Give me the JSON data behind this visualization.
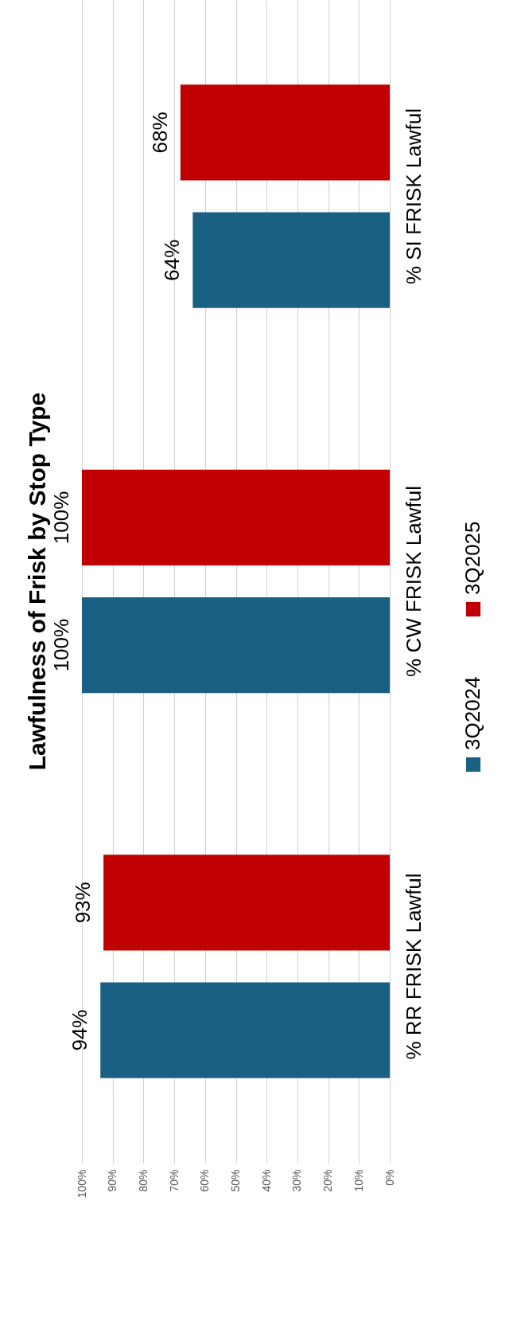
{
  "chart_data": {
    "type": "bar",
    "orientation": "horizontal",
    "title": "Lawfulness of Frisk by Stop Type",
    "categories": [
      "% SI FRISK Lawful",
      "% CW FRISK Lawful",
      "% RR FRISK Lawful"
    ],
    "series": [
      {
        "name": "3Q2024",
        "color": "#1a5f84",
        "values": [
          64,
          100,
          94
        ]
      },
      {
        "name": "3Q2025",
        "color": "#c00000",
        "values": [
          68,
          100,
          93
        ]
      }
    ],
    "xlim": [
      100,
      0
    ],
    "xticks": [
      {
        "value": 100,
        "label": "100%"
      },
      {
        "value": 90,
        "label": "90%"
      },
      {
        "value": 80,
        "label": "80%"
      },
      {
        "value": 70,
        "label": "70%"
      },
      {
        "value": 60,
        "label": "60%"
      },
      {
        "value": 50,
        "label": "50%"
      },
      {
        "value": 40,
        "label": "40%"
      },
      {
        "value": 30,
        "label": "30%"
      },
      {
        "value": 20,
        "label": "20%"
      },
      {
        "value": 10,
        "label": "10%"
      },
      {
        "value": 0,
        "label": "0%"
      }
    ],
    "value_labels": [
      [
        "64%",
        "100%",
        "94%"
      ],
      [
        "68%",
        "100%",
        "93%"
      ]
    ],
    "grid": "x",
    "legend": "right"
  }
}
